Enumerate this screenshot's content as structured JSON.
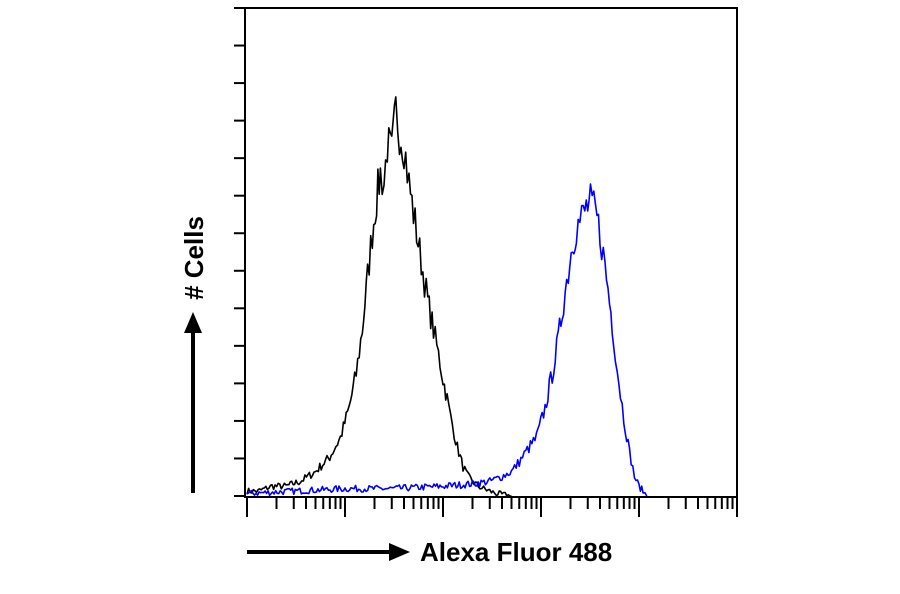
{
  "chart_data": {
    "type": "line",
    "title": "",
    "xlabel": "Alexa Fluor 488",
    "ylabel": "# Cells",
    "x_scale": "log",
    "xlim": [
      1,
      100000
    ],
    "ylim": [
      0,
      100
    ],
    "y_ticks_labeled": false,
    "x_ticks_labeled": false,
    "grid": false,
    "legend": "none",
    "series": [
      {
        "color": "#000000",
        "x": [
          1,
          1.3,
          1.8,
          2.5,
          3.5,
          5,
          7,
          9,
          11,
          13,
          15,
          17,
          19,
          21,
          23,
          25,
          27,
          30,
          33,
          36,
          40,
          45,
          50,
          60,
          70,
          80,
          90,
          100,
          110,
          120,
          130,
          140,
          150,
          160,
          180,
          200,
          230,
          260,
          300,
          350,
          400,
          500
        ],
        "y": [
          1,
          1,
          2,
          2,
          3,
          5,
          8,
          12,
          18,
          25,
          34,
          45,
          54,
          61,
          66,
          64,
          72,
          70,
          79,
          75,
          72,
          64,
          58,
          48,
          40,
          34,
          29,
          24,
          20,
          16,
          13,
          10,
          8,
          6,
          4,
          3,
          2,
          1.5,
          1,
          0.5,
          0.3,
          0
        ]
      },
      {
        "color": "#0000ff",
        "x": [
          1,
          3,
          10,
          30,
          100,
          200,
          300,
          400,
          500,
          600,
          700,
          900,
          1100,
          1300,
          1500,
          1700,
          1900,
          2100,
          2300,
          2600,
          2900,
          3200,
          3600,
          4000,
          4500,
          5000,
          5500,
          6000,
          7000,
          8000,
          9000,
          10000,
          11000,
          12000
        ],
        "y": [
          0.5,
          1,
          1.5,
          1.5,
          2,
          2.5,
          3,
          4,
          5,
          7,
          9,
          12,
          18,
          25,
          32,
          40,
          46,
          52,
          55,
          57,
          59,
          60,
          58,
          54,
          47,
          40,
          33,
          26,
          16,
          9,
          4,
          2,
          1,
          0
        ]
      }
    ]
  }
}
